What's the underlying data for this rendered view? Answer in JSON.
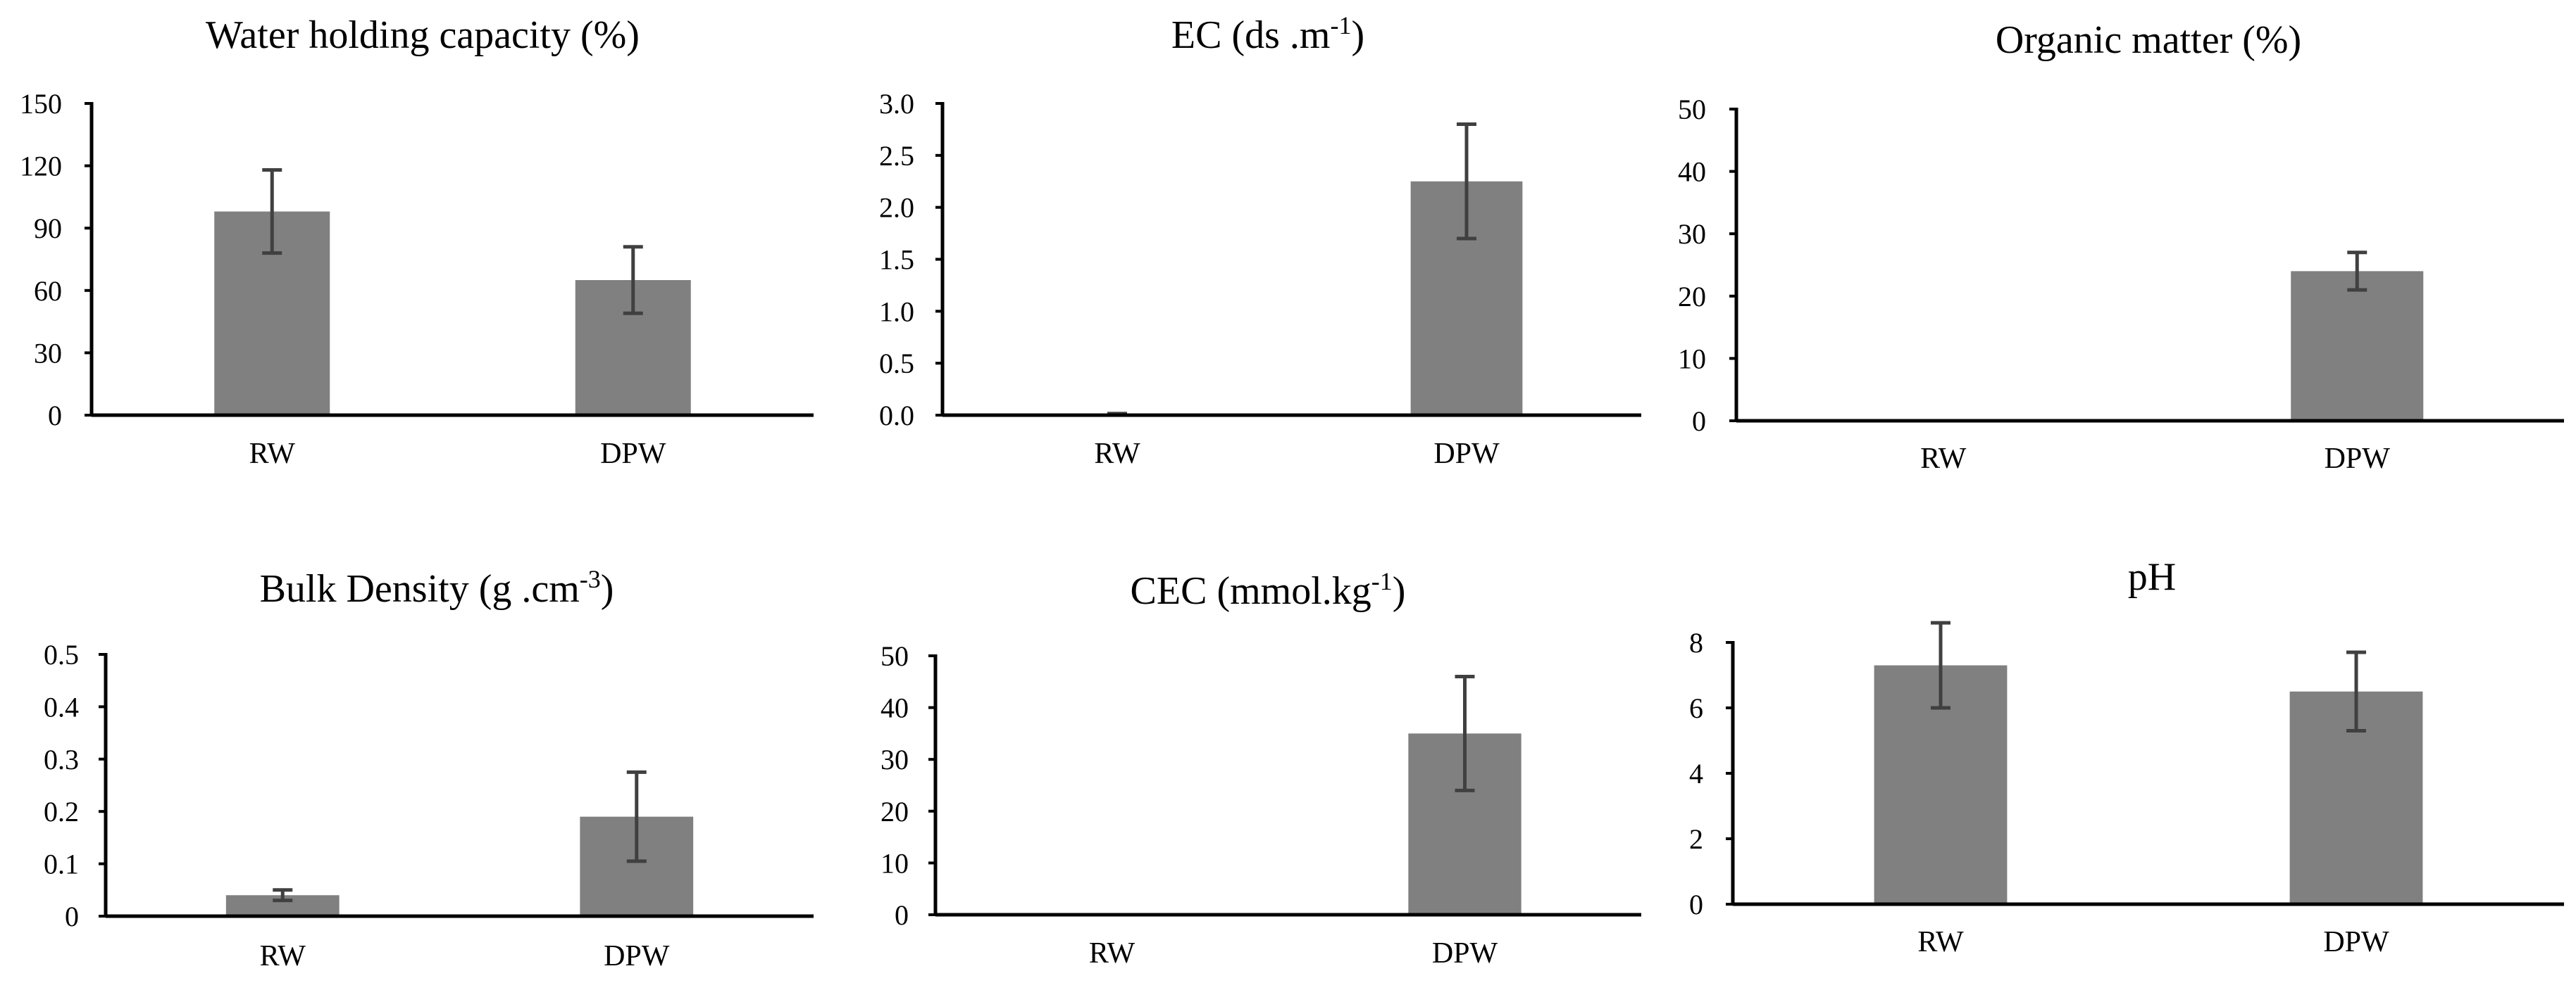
{
  "figure": {
    "bar_color": "#808080",
    "error_color": "#404040",
    "axis_color": "#000000"
  },
  "chart_data": [
    {
      "type": "bar",
      "title": "Water holding capacity (%)",
      "categories": [
        "RW",
        "DPW"
      ],
      "values": [
        98,
        65
      ],
      "errors": [
        20,
        16
      ],
      "ylim": [
        0,
        150
      ],
      "yticks": [
        "0",
        "30",
        "60",
        "90",
        "120",
        "150"
      ],
      "xlabel": "",
      "ylabel": ""
    },
    {
      "type": "bar",
      "title": "EC (ds .m",
      "title_sup": "-1",
      "title_end": ")",
      "categories": [
        "RW",
        "DPW"
      ],
      "values": [
        0.01,
        2.25
      ],
      "errors": [
        0.005,
        0.55
      ],
      "ylim": [
        0,
        3
      ],
      "yticks": [
        "0.0",
        "0.5",
        "1.0",
        "1.5",
        "2.0",
        "2.5",
        "3.0"
      ],
      "xlabel": "",
      "ylabel": ""
    },
    {
      "type": "bar",
      "title": "Organic matter (%)",
      "categories": [
        "RW",
        "DPW"
      ],
      "values": [
        0,
        24
      ],
      "errors": [
        0,
        3
      ],
      "ylim": [
        0,
        50
      ],
      "yticks": [
        "0",
        "10",
        "20",
        "30",
        "40",
        "50"
      ],
      "xlabel": "",
      "ylabel": ""
    },
    {
      "type": "bar",
      "title": "Bulk Density (g .cm",
      "title_sup": "-3",
      "title_end": ")",
      "categories": [
        "RW",
        "DPW"
      ],
      "values": [
        0.04,
        0.19
      ],
      "errors": [
        0.01,
        0.085
      ],
      "ylim": [
        0,
        0.5
      ],
      "yticks": [
        "0",
        "0.1",
        "0.2",
        "0.3",
        "0.4",
        "0.5"
      ],
      "xlabel": "",
      "ylabel": ""
    },
    {
      "type": "bar",
      "title": "CEC (mmol.kg",
      "title_sup": "-1",
      "title_end": ")",
      "categories": [
        "RW",
        "DPW"
      ],
      "values": [
        0,
        35
      ],
      "errors": [
        0,
        11
      ],
      "ylim": [
        0,
        50
      ],
      "yticks": [
        "0",
        "10",
        "20",
        "30",
        "40",
        "50"
      ],
      "xlabel": "",
      "ylabel": ""
    },
    {
      "type": "bar",
      "title": "pH",
      "categories": [
        "RW",
        "DPW"
      ],
      "values": [
        7.3,
        6.5
      ],
      "errors": [
        1.3,
        1.2
      ],
      "ylim": [
        0,
        8
      ],
      "yticks": [
        "0",
        "2",
        "4",
        "6",
        "8"
      ],
      "xlabel": "",
      "ylabel": ""
    }
  ]
}
